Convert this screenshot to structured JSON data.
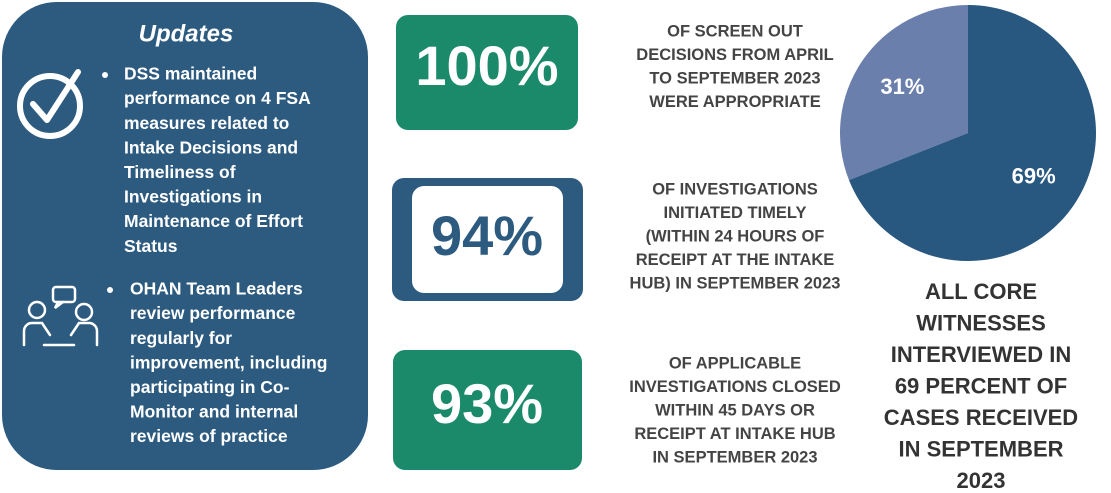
{
  "updates": {
    "title": "Updates",
    "items": [
      {
        "lines": [
          "DSS maintained",
          "performance on 4 FSA",
          "measures related to",
          "Intake Decisions and",
          "Timeliness of",
          "Investigations in",
          "Maintenance of Effort",
          "Status"
        ]
      },
      {
        "lines": [
          "OHAN Team Leaders",
          "review performance",
          "regularly for",
          "improvement, including",
          "participating in Co-",
          "Monitor and internal",
          "reviews of practice"
        ]
      }
    ]
  },
  "stats": [
    {
      "figure": "100%",
      "lines": [
        "OF SCREEN OUT",
        "DECISIONS FROM APRIL",
        "TO SEPTEMBER 2023",
        "WERE APPROPRIATE"
      ]
    },
    {
      "figure": "94%",
      "lines": [
        "OF INVESTIGATIONS",
        "INITIATED TIMELY",
        "(WITHIN 24 HOURS OF",
        "RECEIPT AT THE INTAKE",
        "HUB) IN SEPTEMBER 2023"
      ]
    },
    {
      "figure": "93%",
      "lines": [
        "OF APPLICABLE",
        "INVESTIGATIONS CLOSED",
        "WITHIN 45 DAYS OR",
        "RECEIPT AT INTAKE HUB",
        "IN SEPTEMBER 2023"
      ]
    }
  ],
  "chart_data": {
    "type": "pie",
    "values": [
      31,
      69
    ],
    "value_labels": [
      "31%",
      "69%"
    ],
    "colors": [
      "#6b7fac",
      "#28577f"
    ],
    "caption": [
      "ALL CORE",
      "WITNESSES",
      "INTERVIEWED IN",
      "69 PERCENT OF",
      "CASES RECEIVED",
      "IN SEPTEMBER",
      "2023"
    ]
  }
}
